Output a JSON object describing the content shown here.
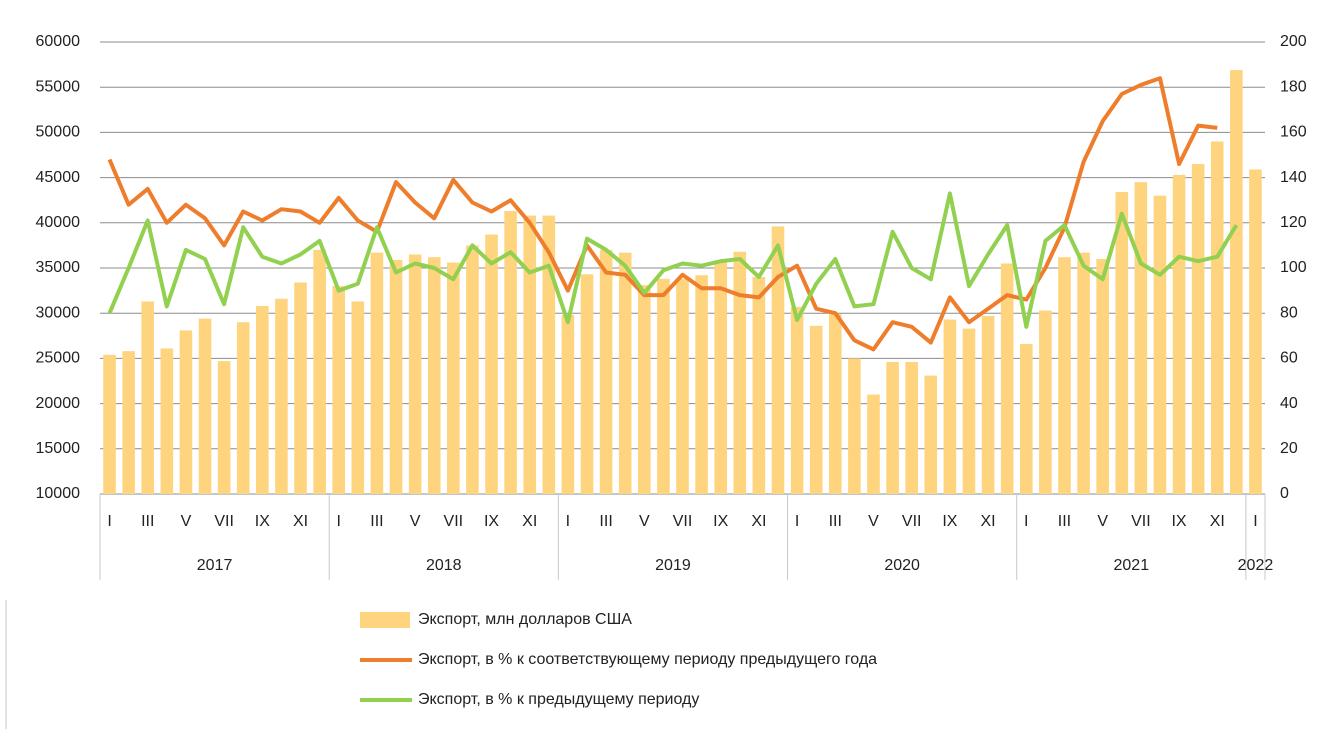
{
  "chart_data": {
    "type": "bar",
    "categories": [
      "I",
      null,
      "III",
      null,
      "V",
      null,
      "VII",
      null,
      "IX",
      null,
      "XI",
      null,
      "I",
      null,
      "III",
      null,
      "V",
      null,
      "VII",
      null,
      "IX",
      null,
      "XI",
      null,
      "I",
      null,
      "III",
      null,
      "V",
      null,
      "VII",
      null,
      "IX",
      null,
      "XI",
      null,
      "I",
      null,
      "III",
      null,
      "V",
      null,
      "VII",
      null,
      "IX",
      null,
      "XI",
      null,
      "I",
      null,
      "III",
      null,
      "V",
      null,
      "VII",
      null,
      "IX",
      null,
      "XI",
      null,
      "I"
    ],
    "groups": [
      {
        "name": "2017",
        "count": 12
      },
      {
        "name": "2018",
        "count": 12
      },
      {
        "name": "2019",
        "count": 12
      },
      {
        "name": "2020",
        "count": 12
      },
      {
        "name": "2021",
        "count": 12
      },
      {
        "name": "2022",
        "count": 1
      }
    ],
    "series": [
      {
        "name": "Экспорт, млн долларов США",
        "type": "bar",
        "color": "#ffd47f",
        "values": [
          25400,
          25800,
          31300,
          26100,
          28100,
          29400,
          24700,
          29000,
          30800,
          31600,
          33400,
          37000,
          33000,
          31300,
          36700,
          35900,
          36500,
          36200,
          35600,
          37500,
          38700,
          41300,
          40800,
          40800,
          29800,
          34300,
          37000,
          36700,
          33100,
          33800,
          33800,
          34200,
          35700,
          36800,
          34000,
          39600,
          30700,
          28600,
          29900,
          25000,
          21000,
          24600,
          24600,
          23100,
          29300,
          28300,
          29700,
          35500,
          26600,
          30300,
          36200,
          36700,
          36000,
          43400,
          44500,
          43000,
          45300,
          46500,
          49000,
          56900,
          45900
        ]
      },
      {
        "name": "Экспорт, в % к соответствующему периоду предыдущего года",
        "type": "line",
        "axis": "y2",
        "color": "#ee7d2c",
        "values": [
          148,
          128,
          135,
          120,
          128,
          122,
          110,
          125,
          121,
          126,
          125,
          120,
          131,
          121,
          116,
          138,
          129,
          122,
          139,
          129,
          125,
          130,
          120,
          107,
          90,
          110,
          98,
          97,
          88,
          88,
          97,
          91,
          91,
          88,
          87,
          96,
          101,
          82,
          80,
          68,
          64,
          76,
          74,
          67,
          87,
          76,
          82,
          88,
          86,
          100,
          118,
          147,
          165,
          177,
          181,
          184,
          146,
          163,
          162,
          null,
          null
        ]
      },
      {
        "name": "Экспорт, в % к предыдущему периоду",
        "type": "line",
        "axis": "y2",
        "color": "#92d050",
        "values": [
          80,
          100,
          121,
          83,
          108,
          104,
          84,
          118,
          105,
          102,
          106,
          112,
          90,
          93,
          118,
          98,
          102,
          100,
          95,
          110,
          102,
          107,
          98,
          101,
          76,
          113,
          108,
          101,
          89,
          99,
          102,
          101,
          103,
          104,
          96,
          110,
          77,
          93,
          104,
          83,
          84,
          116,
          100,
          95,
          133,
          92,
          106,
          119,
          74,
          112,
          119,
          101,
          95,
          124,
          102,
          97,
          105,
          103,
          105,
          119,
          null
        ]
      }
    ],
    "ylim": [
      10000,
      60000
    ],
    "yticks": [
      10000,
      15000,
      20000,
      25000,
      30000,
      35000,
      40000,
      45000,
      50000,
      55000,
      60000
    ],
    "y2lim": [
      0,
      200
    ],
    "y2ticks": [
      0,
      20,
      40,
      60,
      80,
      100,
      120,
      140,
      160,
      180,
      200
    ],
    "grid": true
  }
}
